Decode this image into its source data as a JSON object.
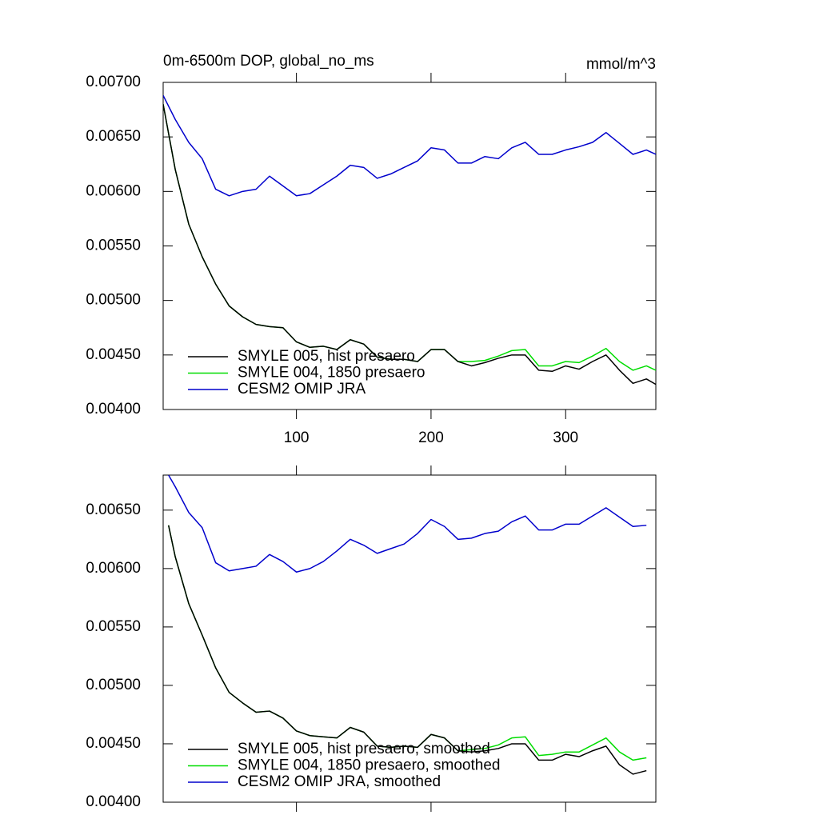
{
  "chart_data": [
    {
      "type": "line",
      "title": "0m-6500m DOP, global_no_ms",
      "units": "mmol/m^3",
      "x": [
        1,
        10,
        20,
        30,
        40,
        50,
        60,
        70,
        80,
        90,
        100,
        110,
        120,
        130,
        140,
        150,
        160,
        170,
        180,
        190,
        200,
        210,
        220,
        230,
        240,
        250,
        260,
        270,
        280,
        290,
        300,
        310,
        320,
        330,
        340,
        350,
        360,
        367
      ],
      "xlim": [
        1,
        367
      ],
      "xticks": [
        100,
        200,
        300
      ],
      "xtick_labels": true,
      "ylim": [
        0.004,
        0.007
      ],
      "yticks": [
        {
          "value": 0.004,
          "label": "0.00400"
        },
        {
          "value": 0.0045,
          "label": "0.00450"
        },
        {
          "value": 0.005,
          "label": "0.00500"
        },
        {
          "value": 0.0055,
          "label": "0.00550"
        },
        {
          "value": 0.006,
          "label": "0.00600"
        },
        {
          "value": 0.0065,
          "label": "0.00650"
        },
        {
          "value": 0.007,
          "label": "0.00700"
        }
      ],
      "legend": "lower left",
      "series": [
        {
          "name": "SMYLE 005, hist presaero",
          "color": "#000000",
          "values": [
            0.0068,
            0.0062,
            0.0057,
            0.0054,
            0.00515,
            0.00495,
            0.00485,
            0.00478,
            0.00476,
            0.00475,
            0.00462,
            0.00457,
            0.00458,
            0.00455,
            0.00464,
            0.0046,
            0.00448,
            0.00446,
            0.00446,
            0.00444,
            0.00455,
            0.00455,
            0.00444,
            0.0044,
            0.00443,
            0.00447,
            0.0045,
            0.0045,
            0.00436,
            0.00435,
            0.0044,
            0.00437,
            0.00444,
            0.0045,
            0.00436,
            0.00424,
            0.00428,
            0.00423
          ]
        },
        {
          "name": "SMYLE 004, 1850 presaero",
          "color": "#00dd00",
          "values": [
            0.0068,
            0.0062,
            0.0057,
            0.0054,
            0.00515,
            0.00495,
            0.00485,
            0.00478,
            0.00476,
            0.00475,
            0.00462,
            0.00457,
            0.00458,
            0.00455,
            0.00464,
            0.0046,
            0.00448,
            0.00446,
            0.00446,
            0.00444,
            0.00455,
            0.00455,
            0.00444,
            0.00444,
            0.00445,
            0.00449,
            0.00454,
            0.00455,
            0.0044,
            0.0044,
            0.00444,
            0.00443,
            0.00449,
            0.00456,
            0.00444,
            0.00436,
            0.0044,
            0.00436
          ]
        },
        {
          "name": "CESM2 OMIP JRA",
          "color": "#0000cc",
          "values": [
            0.00688,
            0.00666,
            0.00645,
            0.0063,
            0.00602,
            0.00596,
            0.006,
            0.00602,
            0.00614,
            0.00605,
            0.00596,
            0.00598,
            0.00606,
            0.00614,
            0.00624,
            0.00622,
            0.00612,
            0.00616,
            0.00622,
            0.00628,
            0.0064,
            0.00638,
            0.00626,
            0.00626,
            0.00632,
            0.0063,
            0.0064,
            0.00645,
            0.00634,
            0.00634,
            0.00638,
            0.00641,
            0.00645,
            0.00654,
            0.00644,
            0.00634,
            0.00638,
            0.00634
          ]
        }
      ]
    },
    {
      "type": "line",
      "x": [
        5,
        10,
        20,
        30,
        40,
        50,
        60,
        70,
        80,
        90,
        100,
        110,
        120,
        130,
        140,
        150,
        160,
        170,
        180,
        190,
        200,
        210,
        220,
        230,
        240,
        250,
        260,
        270,
        280,
        290,
        300,
        310,
        320,
        330,
        340,
        350,
        360
      ],
      "xlim": [
        1,
        367
      ],
      "xticks": [
        100,
        200,
        300
      ],
      "xtick_labels": false,
      "ylim": [
        0.004,
        0.0068
      ],
      "yticks": [
        {
          "value": 0.004,
          "label": "0.00400"
        },
        {
          "value": 0.0045,
          "label": "0.00450"
        },
        {
          "value": 0.005,
          "label": "0.00500"
        },
        {
          "value": 0.0055,
          "label": "0.00550"
        },
        {
          "value": 0.006,
          "label": "0.00600"
        },
        {
          "value": 0.0065,
          "label": "0.00650"
        }
      ],
      "legend": "lower left",
      "series": [
        {
          "name": "SMYLE 005, hist presaero, smoothed",
          "color": "#000000",
          "values": [
            0.00637,
            0.0061,
            0.0057,
            0.00543,
            0.00515,
            0.00494,
            0.00485,
            0.00477,
            0.00478,
            0.00472,
            0.00461,
            0.00457,
            0.00456,
            0.00455,
            0.00464,
            0.0046,
            0.00448,
            0.00447,
            0.00448,
            0.00447,
            0.00458,
            0.00455,
            0.00444,
            0.00443,
            0.00444,
            0.00446,
            0.0045,
            0.0045,
            0.00436,
            0.00436,
            0.00441,
            0.00439,
            0.00444,
            0.00448,
            0.00432,
            0.00424,
            0.00427
          ]
        },
        {
          "name": "SMYLE 004, 1850 presaero, smoothed",
          "color": "#00dd00",
          "values": [
            0.00637,
            0.0061,
            0.0057,
            0.00543,
            0.00515,
            0.00494,
            0.00485,
            0.00477,
            0.00478,
            0.00472,
            0.00461,
            0.00457,
            0.00456,
            0.00455,
            0.00464,
            0.0046,
            0.00448,
            0.00447,
            0.00448,
            0.00447,
            0.00458,
            0.00455,
            0.00444,
            0.00445,
            0.00446,
            0.00449,
            0.00455,
            0.00456,
            0.0044,
            0.00441,
            0.00443,
            0.00443,
            0.00449,
            0.00455,
            0.00443,
            0.00436,
            0.00438
          ]
        },
        {
          "name": "CESM2 OMIP JRA, smoothed",
          "color": "#0000cc",
          "values": [
            0.0068,
            0.0067,
            0.00648,
            0.00635,
            0.00605,
            0.00598,
            0.006,
            0.00602,
            0.00612,
            0.00606,
            0.00597,
            0.006,
            0.00606,
            0.00615,
            0.00625,
            0.0062,
            0.00613,
            0.00617,
            0.00621,
            0.0063,
            0.00642,
            0.00636,
            0.00625,
            0.00626,
            0.0063,
            0.00632,
            0.0064,
            0.00645,
            0.00633,
            0.00633,
            0.00638,
            0.00638,
            0.00645,
            0.00652,
            0.00644,
            0.00636,
            0.00637
          ]
        }
      ]
    }
  ]
}
